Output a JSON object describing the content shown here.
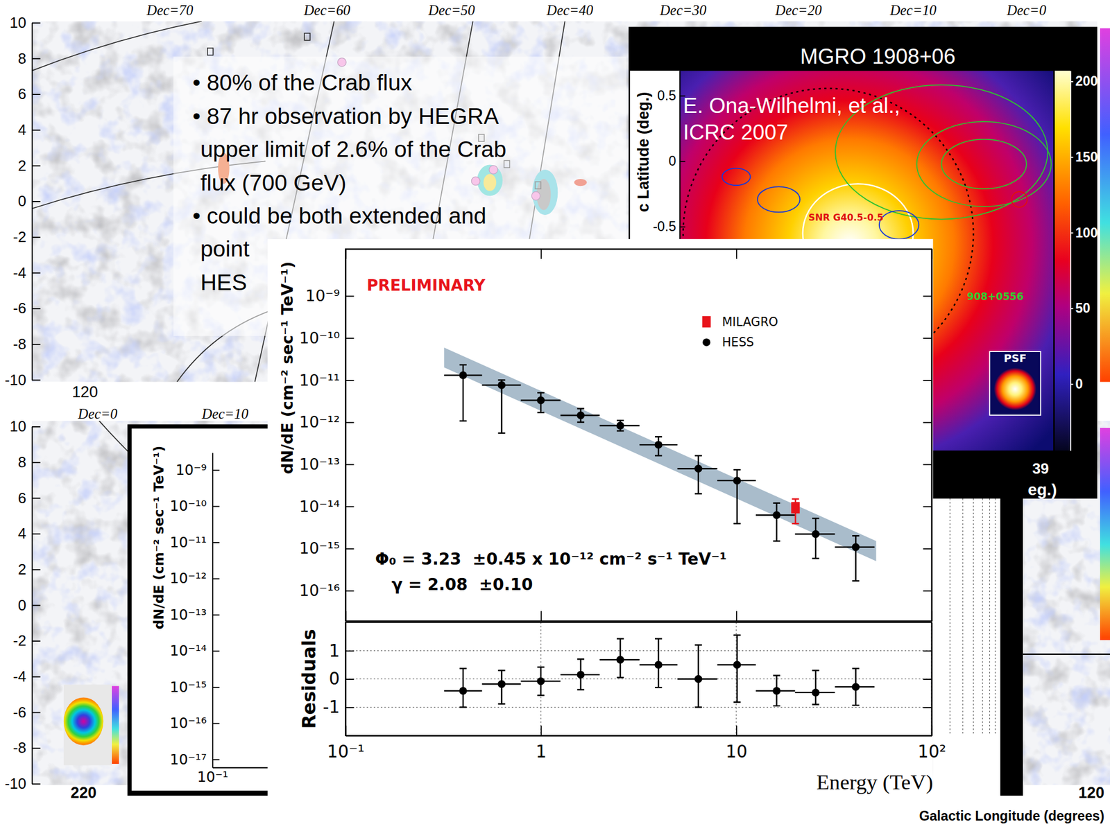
{
  "chart_data": [
    {
      "type": "scatter",
      "ylabel": "dN/dE (cm⁻² sec⁻¹ TeV⁻¹)",
      "annotations": [
        "PRELIMINARY",
        "Φ₀ = 3.23  ±0.45 x 10⁻¹² cm⁻² s⁻¹ TeV⁻¹",
        "γ = 2.08  ±0.10"
      ],
      "log": true,
      "grid": false,
      "tick_labels": "y",
      "legend": "upper right",
      "xlim": [
        0.1,
        100
      ],
      "ylim": [
        1.9e-17,
        1.3e-08
      ],
      "xticks": [
        {
          "value": 0.1,
          "label": "10⁻¹"
        },
        1,
        10,
        {
          "value": 100,
          "label": "10²"
        }
      ],
      "yticks": [
        {
          "value": 1e-09,
          "label": "10⁻⁹"
        },
        {
          "value": 1e-10,
          "label": "10⁻¹⁰"
        },
        {
          "value": 1e-11,
          "label": "10⁻¹¹"
        },
        {
          "value": 1e-12,
          "label": "10⁻¹²"
        },
        {
          "value": 1e-13,
          "label": "10⁻¹³"
        },
        {
          "value": 1e-14,
          "label": "10⁻¹⁴"
        },
        {
          "value": 1e-15,
          "label": "10⁻¹⁵"
        },
        {
          "value": 1e-16,
          "label": "10⁻¹⁶"
        }
      ],
      "fit_band": {
        "color": "#a9bccb",
        "x": [
          0.32,
          52
        ],
        "lower": [
          2e-11,
          5e-16
        ],
        "upper": [
          5.9e-11,
          1.5e-15
        ]
      },
      "series": [
        {
          "name": "MILAGRO",
          "color": "#e8141b",
          "marker": "square",
          "x": [
            20.1
          ],
          "values": [
            9.3e-15
          ],
          "y_lower": [
            3.9e-15
          ],
          "y_upper": [
            1.5e-14
          ]
        },
        {
          "name": "HESS",
          "color": "#000000",
          "marker": "circle",
          "x": [
            0.4,
            0.63,
            1.0,
            1.6,
            2.55,
            4.0,
            6.4,
            10.1,
            16.1,
            25.5,
            40.9
          ],
          "x_lower": [
            0.32,
            0.5,
            0.79,
            1.26,
            2.0,
            3.2,
            5.0,
            8.0,
            12.6,
            20.0,
            32.0
          ],
          "x_upper": [
            0.5,
            0.79,
            1.26,
            2.0,
            3.2,
            5.0,
            8.0,
            12.6,
            20.0,
            32.0,
            51.0
          ],
          "values": [
            1.3e-11,
            7.6e-12,
            3.3e-12,
            1.45e-12,
            8.3e-13,
            2.9e-13,
            7.9e-14,
            4.1e-14,
            6.2e-15,
            2.2e-15,
            1.08e-15
          ],
          "y_lower": [
            1.07e-12,
            5.5e-13,
            1.7e-12,
            1e-12,
            6.2e-13,
            1.6e-13,
            2e-14,
            3.9e-15,
            1.5e-15,
            5.8e-16,
            1.7e-16
          ],
          "y_upper": [
            2.3e-11,
            1e-11,
            5e-12,
            2.1e-12,
            1.1e-12,
            4.5e-13,
            1.6e-13,
            7.4e-14,
            1.2e-14,
            5.2e-15,
            2e-15
          ]
        }
      ]
    },
    {
      "type": "scatter",
      "xlabel": "Energy (TeV)",
      "ylabel": "Residuals",
      "log": "x",
      "grid": true,
      "xlim": [
        0.1,
        100
      ],
      "ylim": [
        -2,
        2
      ],
      "xticks": [
        {
          "value": 0.1,
          "label": "10⁻¹"
        },
        1,
        10,
        {
          "value": 100,
          "label": "10²"
        }
      ],
      "yticks": [
        -1,
        0,
        1
      ],
      "series": [
        {
          "color": "#000000",
          "marker": "circle",
          "x": [
            0.4,
            0.63,
            1.0,
            1.6,
            2.55,
            4.0,
            6.4,
            10.1,
            16.1,
            25.5,
            40.9
          ],
          "x_lower": [
            0.32,
            0.5,
            0.79,
            1.26,
            2.0,
            3.2,
            5.0,
            8.0,
            12.6,
            20.0,
            32.0
          ],
          "x_upper": [
            0.5,
            0.79,
            1.26,
            2.0,
            3.2,
            5.0,
            8.0,
            12.6,
            20.0,
            32.0,
            51.0
          ],
          "values": [
            -0.42,
            -0.18,
            -0.08,
            0.15,
            0.68,
            0.5,
            0,
            0.5,
            -0.42,
            -0.48,
            -0.28
          ],
          "y_lower": [
            -1.0,
            -0.88,
            -0.58,
            -0.38,
            0.05,
            -0.3,
            -1.0,
            -0.82,
            -0.95,
            -0.9,
            -0.93
          ],
          "y_upper": [
            0.37,
            0.3,
            0.42,
            0.7,
            1.42,
            1.42,
            1.2,
            1.55,
            0.12,
            0.3,
            0.37
          ]
        }
      ]
    }
  ],
  "sky_map_top": {
    "dec_labels": [
      "Dec=70",
      "Dec=60",
      "Dec=50",
      "Dec=40",
      "Dec=30",
      "Dec=20",
      "Dec=10",
      "Dec=0"
    ],
    "ylim": [
      -10,
      10
    ],
    "yticks": [
      10,
      8,
      6,
      4,
      2,
      0,
      -2,
      -4,
      -6,
      -8,
      -10
    ],
    "lon_labels": [
      "120"
    ]
  },
  "bullets": [
    [
      "• 80% of the Crab flux"
    ],
    [
      "• 87 hr observation by HEGRA",
      "upper limit of 2.6% of the Crab",
      "flux (700 GeV)"
    ],
    [
      "• could be both extended and",
      "point",
      "HES"
    ]
  ],
  "mgro_panel": {
    "title": "MGRO 1908+06",
    "citation": [
      "E. Ona-Wilhelmi, et al.,",
      "ICRC 2007"
    ],
    "ylabel": "c Latitude (deg.)",
    "ylim": [
      -2.21,
      0.69
    ],
    "yticks": [
      0.5,
      0,
      -0.5
    ],
    "colorbar_range": [
      -44,
      207
    ],
    "colorbar_ticks": [
      200,
      150,
      100,
      50,
      0
    ],
    "source_labels": [
      "SNR G40.5-0.5",
      "908+0556"
    ],
    "psf_label": "PSF",
    "xtick_labels": [
      "39"
    ],
    "xlabel": "eg.)"
  },
  "sky_map_bottom": {
    "dec_labels": [
      "Dec=0",
      "Dec=10"
    ],
    "ylim": [
      -10,
      10
    ],
    "yticks": [
      10,
      8,
      6,
      4,
      2,
      0,
      -2,
      -4,
      -6,
      -8,
      -10
    ],
    "lon_labels": [
      "220",
      "120"
    ],
    "lon_title": "Galactic Longitude (degrees)"
  },
  "inset_spectrum": {
    "ylabel": "dN/dE (cm⁻² sec⁻¹ TeV⁻¹)",
    "ylim": [
      6e-18,
      3e-09
    ],
    "yticks": [
      {
        "value": 1e-09,
        "label": "10⁻⁹"
      },
      {
        "value": 1e-10,
        "label": "10⁻¹⁰"
      },
      {
        "value": 1e-11,
        "label": "10⁻¹¹"
      },
      {
        "value": 1e-12,
        "label": "10⁻¹²"
      },
      {
        "value": 1e-13,
        "label": "10⁻¹³"
      },
      {
        "value": 1e-14,
        "label": "10⁻¹⁴"
      },
      {
        "value": 1e-15,
        "label": "10⁻¹⁵"
      },
      {
        "value": 1e-16,
        "label": "10⁻¹⁶"
      },
      {
        "value": 1e-17,
        "label": "10⁻¹⁷"
      }
    ],
    "xlim": [
      0.1,
      100
    ],
    "xticks": [
      {
        "value": 0.1,
        "label": "10⁻¹"
      }
    ]
  }
}
